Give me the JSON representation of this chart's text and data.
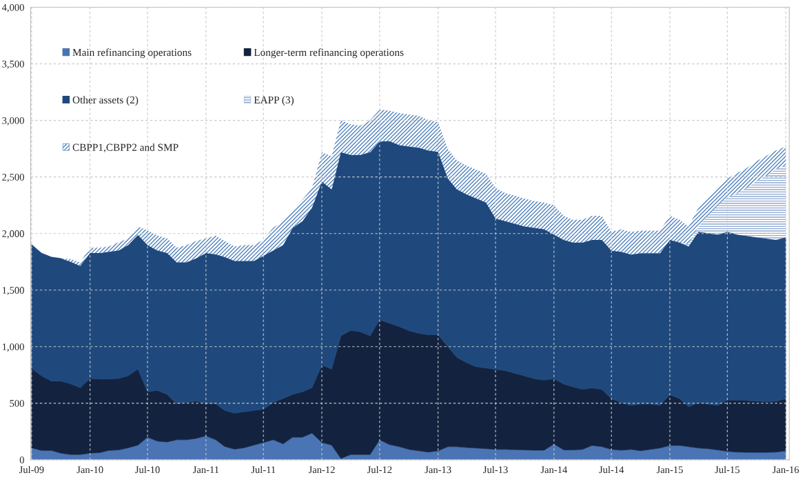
{
  "chart_data": {
    "type": "area",
    "stacked": true,
    "x": [
      "2009-07",
      "2009-08",
      "2009-09",
      "2009-10",
      "2009-11",
      "2009-12",
      "2010-01",
      "2010-02",
      "2010-03",
      "2010-04",
      "2010-05",
      "2010-06",
      "2010-07",
      "2010-08",
      "2010-09",
      "2010-10",
      "2010-11",
      "2010-12",
      "2011-01",
      "2011-02",
      "2011-03",
      "2011-04",
      "2011-05",
      "2011-06",
      "2011-07",
      "2011-08",
      "2011-09",
      "2011-10",
      "2011-11",
      "2011-12",
      "2012-01",
      "2012-02",
      "2012-03",
      "2012-04",
      "2012-05",
      "2012-06",
      "2012-07",
      "2012-08",
      "2012-09",
      "2012-10",
      "2012-11",
      "2012-12",
      "2013-01",
      "2013-02",
      "2013-03",
      "2013-04",
      "2013-05",
      "2013-06",
      "2013-07",
      "2013-08",
      "2013-09",
      "2013-10",
      "2013-11",
      "2013-12",
      "2014-01",
      "2014-02",
      "2014-03",
      "2014-04",
      "2014-05",
      "2014-06",
      "2014-07",
      "2014-08",
      "2014-09",
      "2014-10",
      "2014-11",
      "2014-12",
      "2015-01",
      "2015-02",
      "2015-03",
      "2015-04",
      "2015-05",
      "2015-06",
      "2015-07",
      "2015-08",
      "2015-09",
      "2015-10",
      "2015-11",
      "2015-12",
      "2016-01"
    ],
    "series": [
      {
        "name": "Main refinancing operations",
        "color": "#4a74b4",
        "values": [
          106,
          83,
          83,
          59,
          47,
          47,
          59,
          64,
          83,
          87,
          106,
          130,
          200,
          165,
          158,
          177,
          177,
          189,
          212,
          177,
          118,
          94,
          106,
          130,
          153,
          177,
          141,
          200,
          200,
          236,
          153,
          130,
          12,
          47,
          47,
          47,
          177,
          135,
          116,
          92,
          80,
          68,
          80,
          116,
          116,
          109,
          104,
          99,
          92,
          92,
          90,
          87,
          85,
          85,
          139,
          87,
          87,
          92,
          127,
          116,
          92,
          85,
          92,
          80,
          92,
          104,
          127,
          127,
          116,
          104,
          99,
          87,
          75,
          68,
          66,
          66,
          66,
          68,
          80
        ]
      },
      {
        "name": "Longer-term refinancing operations",
        "color": "#13233f",
        "values": [
          703,
          660,
          613,
          637,
          625,
          590,
          660,
          650,
          631,
          632,
          637,
          672,
          401,
          448,
          420,
          318,
          330,
          330,
          283,
          318,
          318,
          319,
          318,
          306,
          295,
          330,
          401,
          378,
          401,
          401,
          684,
          672,
          1084,
          1097,
          1085,
          1049,
          1061,
          1073,
          1061,
          1050,
          1038,
          1038,
          1026,
          884,
          790,
          750,
          719,
          712,
          708,
          696,
          674,
          654,
          632,
          620,
          578,
          583,
          559,
          531,
          508,
          507,
          448,
          420,
          389,
          413,
          401,
          377,
          449,
          413,
          353,
          401,
          394,
          394,
          453,
          460,
          458,
          453,
          448,
          449,
          460
        ]
      },
      {
        "name": "Other assets (2)",
        "color": "#1f497d",
        "values": [
          1094,
          1084,
          1096,
          1084,
          1078,
          1077,
          1108,
          1113,
          1125,
          1132,
          1155,
          1186,
          1297,
          1238,
          1249,
          1250,
          1238,
          1261,
          1332,
          1320,
          1356,
          1344,
          1333,
          1321,
          1356,
          1344,
          1356,
          1470,
          1509,
          1591,
          1623,
          1588,
          1623,
          1551,
          1563,
          1623,
          1575,
          1608,
          1604,
          1627,
          1640,
          1628,
          1616,
          1486,
          1486,
          1486,
          1487,
          1463,
          1333,
          1321,
          1321,
          1321,
          1333,
          1333,
          1274,
          1274,
          1274,
          1297,
          1309,
          1321,
          1309,
          1333,
          1333,
          1333,
          1333,
          1345,
          1368,
          1380,
          1416,
          1510,
          1510,
          1510,
          1487,
          1463,
          1455,
          1448,
          1442,
          1427,
          1427
        ]
      },
      {
        "name": "EAPP (3)",
        "color": "#8fa9d2",
        "values": [
          0,
          0,
          0,
          0,
          0,
          0,
          0,
          0,
          0,
          0,
          0,
          0,
          0,
          0,
          0,
          0,
          0,
          0,
          0,
          0,
          0,
          0,
          0,
          0,
          0,
          0,
          0,
          0,
          0,
          0,
          0,
          0,
          0,
          0,
          0,
          0,
          0,
          0,
          0,
          0,
          0,
          0,
          0,
          0,
          0,
          0,
          0,
          0,
          0,
          0,
          0,
          0,
          0,
          0,
          0,
          0,
          0,
          0,
          0,
          0,
          0,
          0,
          0,
          0,
          0,
          0,
          0,
          0,
          20,
          47,
          153,
          259,
          306,
          366,
          425,
          496,
          554,
          625,
          637
        ]
      },
      {
        "name": "CBPP1,CBPP2 and SMP",
        "color": "#4f81bd",
        "values": [
          0,
          0,
          0,
          0,
          25,
          31,
          48,
          48,
          47,
          71,
          59,
          75,
          130,
          130,
          130,
          130,
          153,
          154,
          130,
          166,
          142,
          129,
          141,
          141,
          141,
          200,
          212,
          157,
          190,
          172,
          259,
          294,
          282,
          271,
          259,
          282,
          283,
          270,
          283,
          283,
          283,
          271,
          260,
          260,
          255,
          255,
          255,
          255,
          271,
          248,
          248,
          247,
          236,
          236,
          259,
          212,
          201,
          201,
          212,
          212,
          166,
          200,
          200,
          200,
          200,
          200,
          212,
          201,
          157,
          165,
          165,
          166,
          165,
          177,
          177,
          177,
          177,
          165,
          165
        ]
      }
    ],
    "xlim": [
      "2009-06-28",
      "2016-01-12"
    ],
    "xticks": [
      {
        "value": "2009-07",
        "label": "Jul-09"
      },
      {
        "value": "2010-01",
        "label": "Jan-10"
      },
      {
        "value": "2010-07",
        "label": "Jul-10"
      },
      {
        "value": "2011-01",
        "label": "Jan-11"
      },
      {
        "value": "2011-07",
        "label": "Jul-11"
      },
      {
        "value": "2012-01",
        "label": "Jan-12"
      },
      {
        "value": "2012-07",
        "label": "Jul-12"
      },
      {
        "value": "2013-01",
        "label": "Jan-13"
      },
      {
        "value": "2013-07",
        "label": "Jul-13"
      },
      {
        "value": "2014-01",
        "label": "Jan-14"
      },
      {
        "value": "2014-07",
        "label": "Jul-14"
      },
      {
        "value": "2015-01",
        "label": "Jan-15"
      },
      {
        "value": "2015-07",
        "label": "Jul-15"
      },
      {
        "value": "2016-01",
        "label": "Jan-16"
      }
    ],
    "ylim": [
      0,
      4000
    ],
    "yticks": [
      0,
      500,
      {
        "value": 1000,
        "label": "1,000"
      },
      {
        "value": 1500,
        "label": "1,500"
      },
      {
        "value": 2000,
        "label": "2,000"
      },
      {
        "value": 2500,
        "label": "2,500"
      },
      {
        "value": 3000,
        "label": "3,000"
      },
      {
        "value": 3500,
        "label": "3,500"
      },
      {
        "value": 4000,
        "label": "4,000"
      }
    ],
    "grid": true,
    "legend": "top left"
  }
}
